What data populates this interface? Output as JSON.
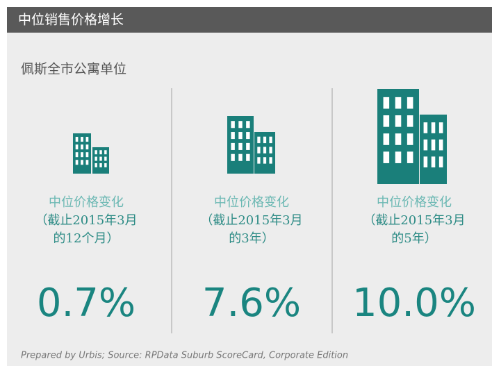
{
  "header": {
    "title": "中位销售价格增长"
  },
  "subtitle": "佩斯全市公寓单位",
  "columns": [
    {
      "label_lines": [
        "中位价格变化",
        "（截止2015年3月",
        "的12个月）"
      ],
      "value": "0.7%"
    },
    {
      "label_lines": [
        "中位价格变化",
        "（截止2015年3月",
        "的3年）"
      ],
      "value": "7.6%"
    },
    {
      "label_lines": [
        "中位价格变化",
        "（截止2015年3月",
        "的5年）"
      ],
      "value": "10.0%"
    }
  ],
  "footer": "Prepared by Urbis; Source: RPData Suburb ScoreCard, Corporate Edition"
}
